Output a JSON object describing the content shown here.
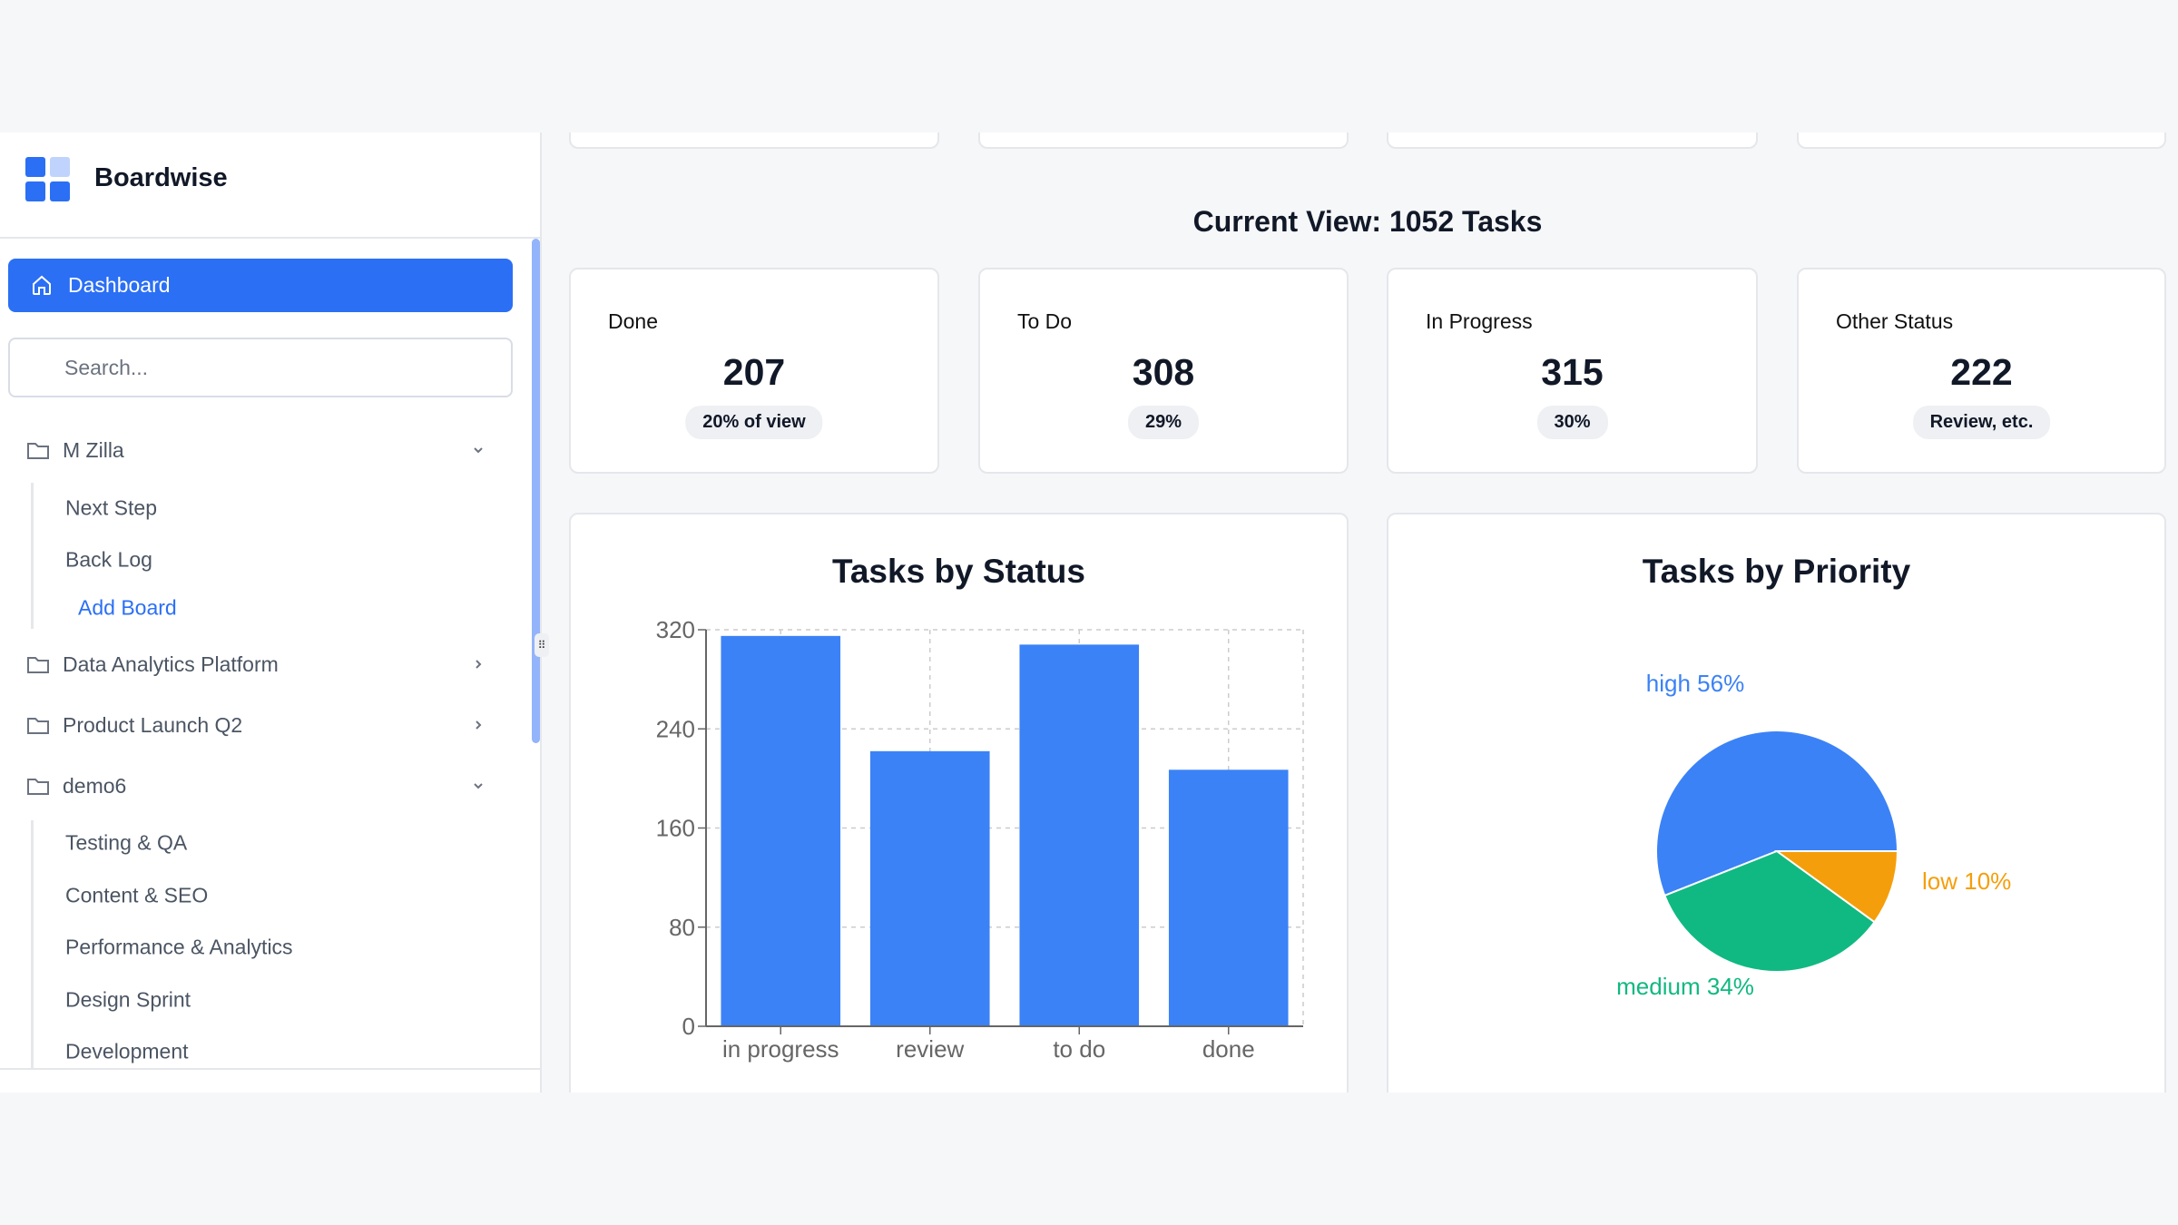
{
  "sidebar": {
    "brand": "Boardwise",
    "dashboard_label": "Dashboard",
    "search_placeholder": "Search...",
    "groups": [
      {
        "label": "M Zilla",
        "expanded": true,
        "items": [
          "Next Step",
          "Back Log"
        ],
        "add_label": "Add Board"
      },
      {
        "label": "Data Analytics Platform",
        "expanded": false
      },
      {
        "label": "Product Launch Q2",
        "expanded": false
      },
      {
        "label": "demo6",
        "expanded": true,
        "items": [
          "Testing & QA",
          "Content & SEO",
          "Performance & Analytics",
          "Design Sprint",
          "Development"
        ]
      }
    ]
  },
  "main": {
    "current_view": "Current View: 1052 Tasks",
    "stats": [
      {
        "label": "Done",
        "value": "207",
        "badge": "20% of view"
      },
      {
        "label": "To Do",
        "value": "308",
        "badge": "29%"
      },
      {
        "label": "In Progress",
        "value": "315",
        "badge": "30%"
      },
      {
        "label": "Other Status",
        "value": "222",
        "badge": "Review, etc."
      }
    ]
  },
  "colors": {
    "accent": "#2b6ff5",
    "high": "#3b82f6",
    "medium": "#10b981",
    "low": "#f59e0b"
  },
  "chart_data": [
    {
      "type": "bar",
      "title": "Tasks by Status",
      "categories": [
        "in progress",
        "review",
        "to do",
        "done"
      ],
      "values": [
        315,
        222,
        308,
        207
      ],
      "yticks": [
        0,
        80,
        160,
        240,
        320
      ],
      "ylim": [
        0,
        320
      ],
      "grid": true,
      "color": "#3b82f6"
    },
    {
      "type": "pie",
      "title": "Tasks by Priority",
      "slices": [
        {
          "label": "high",
          "value": 56,
          "text": "high 56%",
          "color": "#3b82f6"
        },
        {
          "label": "medium",
          "value": 34,
          "text": "medium 34%",
          "color": "#10b981"
        },
        {
          "label": "low",
          "value": 10,
          "text": "low 10%",
          "color": "#f59e0b"
        }
      ]
    }
  ]
}
